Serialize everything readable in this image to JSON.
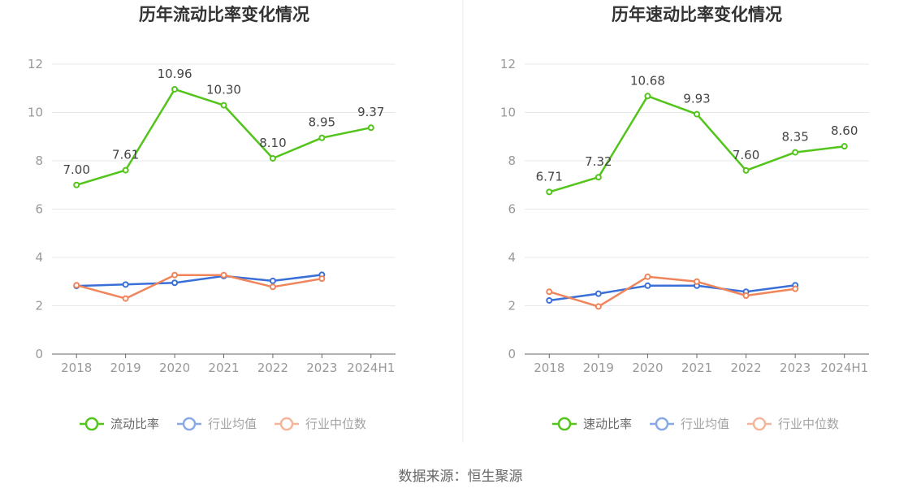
{
  "source": "数据来源：恒生聚源",
  "colors": {
    "main": "#52c41a",
    "avg": "#3a6fd8",
    "median": "#f0845a",
    "grid": "#e6e8ee",
    "axis": "#666666"
  },
  "chart_data": [
    {
      "type": "line",
      "title": "历年流动比率变化情况",
      "categories": [
        "2018",
        "2019",
        "2020",
        "2021",
        "2022",
        "2023",
        "2024H1"
      ],
      "ylim": [
        0,
        12
      ],
      "yticks": [
        "0",
        "2",
        "4",
        "6",
        "8",
        "10",
        "12"
      ],
      "grid": true,
      "legend_position": "bottom",
      "series": [
        {
          "name": "流动比率",
          "values": [
            7.0,
            7.61,
            10.96,
            10.3,
            8.1,
            8.95,
            9.37
          ],
          "labels": [
            "7.00",
            "7.61",
            "10.96",
            "10.30",
            "8.10",
            "8.95",
            "9.37"
          ]
        },
        {
          "name": "行业均值",
          "values": [
            2.82,
            2.88,
            2.95,
            3.23,
            3.03,
            3.28,
            null
          ]
        },
        {
          "name": "行业中位数",
          "values": [
            2.85,
            2.3,
            3.27,
            3.27,
            2.78,
            3.12,
            null
          ]
        }
      ]
    },
    {
      "type": "line",
      "title": "历年速动比率变化情况",
      "categories": [
        "2018",
        "2019",
        "2020",
        "2021",
        "2022",
        "2023",
        "2024H1"
      ],
      "ylim": [
        0,
        12
      ],
      "yticks": [
        "0",
        "2",
        "4",
        "6",
        "8",
        "10",
        "12"
      ],
      "grid": true,
      "legend_position": "bottom",
      "series": [
        {
          "name": "速动比率",
          "values": [
            6.71,
            7.32,
            10.68,
            9.93,
            7.6,
            8.35,
            8.6
          ],
          "labels": [
            "6.71",
            "7.32",
            "10.68",
            "9.93",
            "7.60",
            "8.35",
            "8.60"
          ]
        },
        {
          "name": "行业均值",
          "values": [
            2.22,
            2.5,
            2.83,
            2.83,
            2.58,
            2.85,
            null
          ]
        },
        {
          "name": "行业中位数",
          "values": [
            2.58,
            1.97,
            3.2,
            3.0,
            2.42,
            2.7,
            null
          ]
        }
      ]
    }
  ]
}
